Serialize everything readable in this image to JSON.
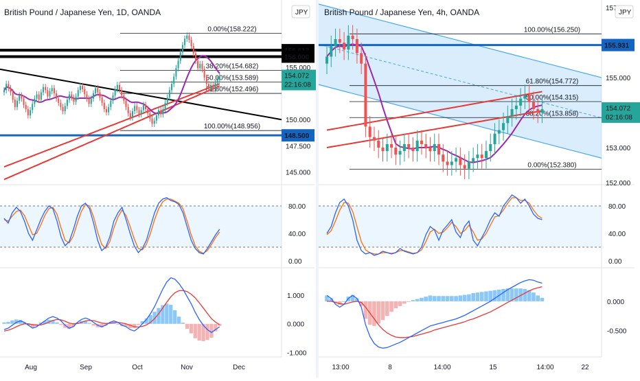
{
  "colors": {
    "up": "#26a69a",
    "down": "#ef5350",
    "ma_red": "#e53935",
    "ma_purple": "#9c27b0",
    "trend_black": "#000000",
    "level_blue": "#1565c0",
    "stoch_k": "#2962ff",
    "stoch_d": "#ff6d00",
    "band_fill": "#e3f2fd",
    "macd_line": "#2962ff",
    "signal_line": "#e53935",
    "channel_fill": "#bbdefb",
    "channel_line": "#42a5f5",
    "price_badge": "#26a69a"
  },
  "chart_data": [
    {
      "type": "candlestick",
      "title": "British Pound / Japanese Yen, 1D, OANDA",
      "currency_badge": "JPY",
      "ylim": [
        144,
        161
      ],
      "x_ticks": [
        "Aug",
        "Sep",
        "Oct",
        "Nov",
        "Dec"
      ],
      "y_ticks": [
        "155.000",
        "150.000",
        "147.500",
        "145.000"
      ],
      "price_label": "154.072",
      "countdown": "22:16:08",
      "levels": [
        {
          "label": "156.612",
          "value": 156.612,
          "style": "black"
        },
        {
          "label": "156.000",
          "value": 156.0,
          "style": "black"
        },
        {
          "label": "148.500",
          "value": 148.5,
          "style": "blue"
        }
      ],
      "fib": [
        {
          "label": "0.00%(158.222)",
          "value": 158.222
        },
        {
          "label": "38.20%(154.682)",
          "value": 154.682
        },
        {
          "label": "50.00%(153.589)",
          "value": 153.589
        },
        {
          "label": "61.80%(152.496)",
          "value": 152.496
        },
        {
          "label": "100.00%(148.956)",
          "value": 148.956
        }
      ],
      "close": [
        152.8,
        153.4,
        153.0,
        152.6,
        151.9,
        151.2,
        151.8,
        152.3,
        152.0,
        151.4,
        151.0,
        150.4,
        150.9,
        151.5,
        152.0,
        152.4,
        151.9,
        152.6,
        153.1,
        152.8,
        152.2,
        152.7,
        153.0,
        152.5,
        152.0,
        151.6,
        151.2,
        150.8,
        151.3,
        151.9,
        152.4,
        152.1,
        151.7,
        152.2,
        152.8,
        153.2,
        152.9,
        152.4,
        152.0,
        151.5,
        152.0,
        152.5,
        153.0,
        152.6,
        152.1,
        151.6,
        151.0,
        150.7,
        151.2,
        151.8,
        152.3,
        152.9,
        153.3,
        152.8,
        152.3,
        151.8,
        151.2,
        150.6,
        150.2,
        150.8,
        151.3,
        150.9,
        150.5,
        150.9,
        151.4,
        151.0,
        150.6,
        150.1,
        149.6,
        149.9,
        150.4,
        150.9,
        150.5,
        151.0,
        151.6,
        152.1,
        152.8,
        153.4,
        154.1,
        154.9,
        155.6,
        156.4,
        157.1,
        157.7,
        158.0,
        157.6,
        157.0,
        156.3,
        155.6,
        154.9,
        155.3,
        154.8,
        154.0,
        153.4,
        152.9,
        153.3,
        152.9,
        153.5,
        153.8,
        154.1
      ]
    },
    {
      "type": "candlestick",
      "title": "British Pound / Japanese Yen, 4h, OANDA",
      "currency_badge": "JPY",
      "ylim": [
        152,
        157.1
      ],
      "x_ticks": [
        "13:00",
        "8",
        "14:00",
        "15",
        "14:00",
        "22"
      ],
      "y_ticks": [
        "157.000",
        "155.000",
        "153.000",
        "152.000"
      ],
      "price_label": "154.072",
      "countdown": "02:16:08",
      "levels": [
        {
          "label": "155.931",
          "value": 155.931,
          "style": "blue"
        }
      ],
      "fib": [
        {
          "label": "100.00%(156.250)",
          "value": 156.25
        },
        {
          "label": "61.80%(154.772)",
          "value": 154.772
        },
        {
          "label": "50.00%(154.315)",
          "value": 154.315
        },
        {
          "label": "38.20%(153.858)",
          "value": 153.858
        },
        {
          "label": "0.00%(152.380)",
          "value": 152.38
        }
      ],
      "close": [
        155.6,
        155.9,
        156.1,
        156.0,
        155.8,
        156.2,
        156.1,
        155.7,
        155.4,
        153.6,
        153.3,
        153.2,
        153.0,
        152.9,
        153.1,
        153.0,
        152.8,
        152.9,
        153.1,
        153.0,
        152.9,
        153.2,
        153.1,
        153.0,
        152.9,
        153.1,
        152.8,
        152.6,
        152.5,
        152.6,
        152.7,
        152.5,
        152.4,
        152.6,
        152.7,
        152.8,
        152.7,
        152.9,
        153.1,
        153.4,
        153.5,
        153.7,
        153.9,
        154.1,
        154.2,
        154.4,
        154.5,
        154.3,
        154.1,
        154.0,
        154.1
      ]
    }
  ],
  "stochastic": [
    {
      "y_ticks": [
        "80.00",
        "40.00",
        "0.00"
      ],
      "k": [
        62,
        55,
        70,
        78,
        72,
        58,
        40,
        30,
        45,
        60,
        72,
        80,
        76,
        58,
        35,
        22,
        28,
        45,
        65,
        80,
        84,
        76,
        55,
        30,
        15,
        20,
        35,
        58,
        70,
        78,
        60,
        40,
        22,
        12,
        18,
        30,
        50,
        70,
        84,
        90,
        92,
        88,
        86,
        82,
        70,
        50,
        30,
        18,
        12,
        10,
        18,
        28,
        38,
        46
      ],
      "d": [
        60,
        58,
        65,
        72,
        74,
        66,
        52,
        38,
        40,
        52,
        66,
        76,
        78,
        68,
        48,
        30,
        26,
        36,
        55,
        72,
        82,
        80,
        64,
        42,
        24,
        18,
        28,
        48,
        64,
        74,
        66,
        50,
        32,
        18,
        16,
        24,
        40,
        60,
        76,
        86,
        90,
        90,
        87,
        84,
        76,
        58,
        38,
        22,
        14,
        11,
        15,
        24,
        34,
        42
      ]
    },
    {
      "y_ticks": [
        "80.00",
        "40.00",
        "0.00"
      ],
      "k": [
        40,
        50,
        70,
        85,
        90,
        80,
        60,
        30,
        15,
        10,
        12,
        8,
        10,
        14,
        12,
        10,
        12,
        18,
        14,
        12,
        10,
        12,
        20,
        38,
        50,
        45,
        30,
        45,
        52,
        60,
        42,
        34,
        50,
        58,
        30,
        22,
        34,
        46,
        60,
        70,
        65,
        80,
        88,
        96,
        92,
        84,
        90,
        80,
        68,
        62,
        60
      ],
      "d": [
        38,
        44,
        58,
        74,
        85,
        84,
        72,
        50,
        28,
        16,
        12,
        10,
        10,
        12,
        12,
        11,
        12,
        15,
        15,
        13,
        11,
        12,
        16,
        28,
        42,
        46,
        40,
        42,
        48,
        56,
        50,
        40,
        44,
        52,
        42,
        30,
        32,
        40,
        52,
        64,
        66,
        74,
        84,
        92,
        92,
        88,
        88,
        84,
        74,
        66,
        62
      ]
    }
  ],
  "macd": [
    {
      "y_ticks": [
        "1.000",
        "0.000",
        "-1.000"
      ],
      "macd": [
        -0.2,
        -0.15,
        -0.05,
        0.05,
        0.1,
        0.05,
        -0.05,
        -0.15,
        -0.1,
        0.0,
        0.1,
        0.2,
        0.25,
        0.2,
        0.1,
        -0.05,
        -0.15,
        -0.1,
        0.05,
        0.15,
        0.2,
        0.15,
        0.05,
        -0.05,
        -0.1,
        -0.05,
        0.05,
        0.1,
        0.05,
        -0.05,
        -0.1,
        -0.2,
        -0.25,
        -0.15,
        0.0,
        0.15,
        0.35,
        0.6,
        0.9,
        1.2,
        1.45,
        1.6,
        1.55,
        1.4,
        1.2,
        0.95,
        0.7,
        0.4,
        0.15,
        -0.05,
        -0.2,
        -0.3,
        -0.2,
        -0.1
      ],
      "signal": [
        -0.25,
        -0.22,
        -0.17,
        -0.1,
        -0.04,
        0.0,
        0.0,
        -0.03,
        -0.05,
        -0.04,
        0.0,
        0.06,
        0.12,
        0.15,
        0.14,
        0.09,
        0.03,
        0.0,
        0.01,
        0.05,
        0.1,
        0.12,
        0.11,
        0.07,
        0.03,
        0.01,
        0.02,
        0.04,
        0.05,
        0.03,
        0.0,
        -0.05,
        -0.1,
        -0.11,
        -0.09,
        -0.04,
        0.05,
        0.18,
        0.35,
        0.55,
        0.75,
        0.94,
        1.08,
        1.15,
        1.16,
        1.12,
        1.03,
        0.9,
        0.73,
        0.55,
        0.36,
        0.18,
        0.06,
        -0.03
      ]
    },
    {
      "y_ticks": [
        "0.000",
        "-0.500"
      ],
      "macd": [
        0.1,
        0.05,
        -0.05,
        -0.1,
        -0.05,
        0.05,
        0.1,
        0.05,
        -0.1,
        -0.4,
        -0.6,
        -0.72,
        -0.78,
        -0.8,
        -0.79,
        -0.76,
        -0.73,
        -0.7,
        -0.66,
        -0.62,
        -0.58,
        -0.54,
        -0.5,
        -0.46,
        -0.42,
        -0.4,
        -0.38,
        -0.36,
        -0.34,
        -0.32,
        -0.3,
        -0.27,
        -0.24,
        -0.2,
        -0.16,
        -0.12,
        -0.08,
        -0.04,
        0.0,
        0.05,
        0.1,
        0.15,
        0.2,
        0.24,
        0.28,
        0.32,
        0.35,
        0.37,
        0.36,
        0.33,
        0.31
      ],
      "signal": [
        0.0,
        0.0,
        -0.02,
        -0.04,
        -0.05,
        -0.03,
        -0.01,
        0.0,
        -0.02,
        -0.1,
        -0.2,
        -0.3,
        -0.4,
        -0.48,
        -0.54,
        -0.58,
        -0.61,
        -0.62,
        -0.62,
        -0.61,
        -0.6,
        -0.58,
        -0.56,
        -0.54,
        -0.52,
        -0.49,
        -0.47,
        -0.45,
        -0.43,
        -0.41,
        -0.39,
        -0.37,
        -0.35,
        -0.32,
        -0.3,
        -0.27,
        -0.24,
        -0.21,
        -0.18,
        -0.14,
        -0.1,
        -0.06,
        -0.02,
        0.02,
        0.06,
        0.1,
        0.14,
        0.18,
        0.21,
        0.23,
        0.25
      ]
    }
  ]
}
